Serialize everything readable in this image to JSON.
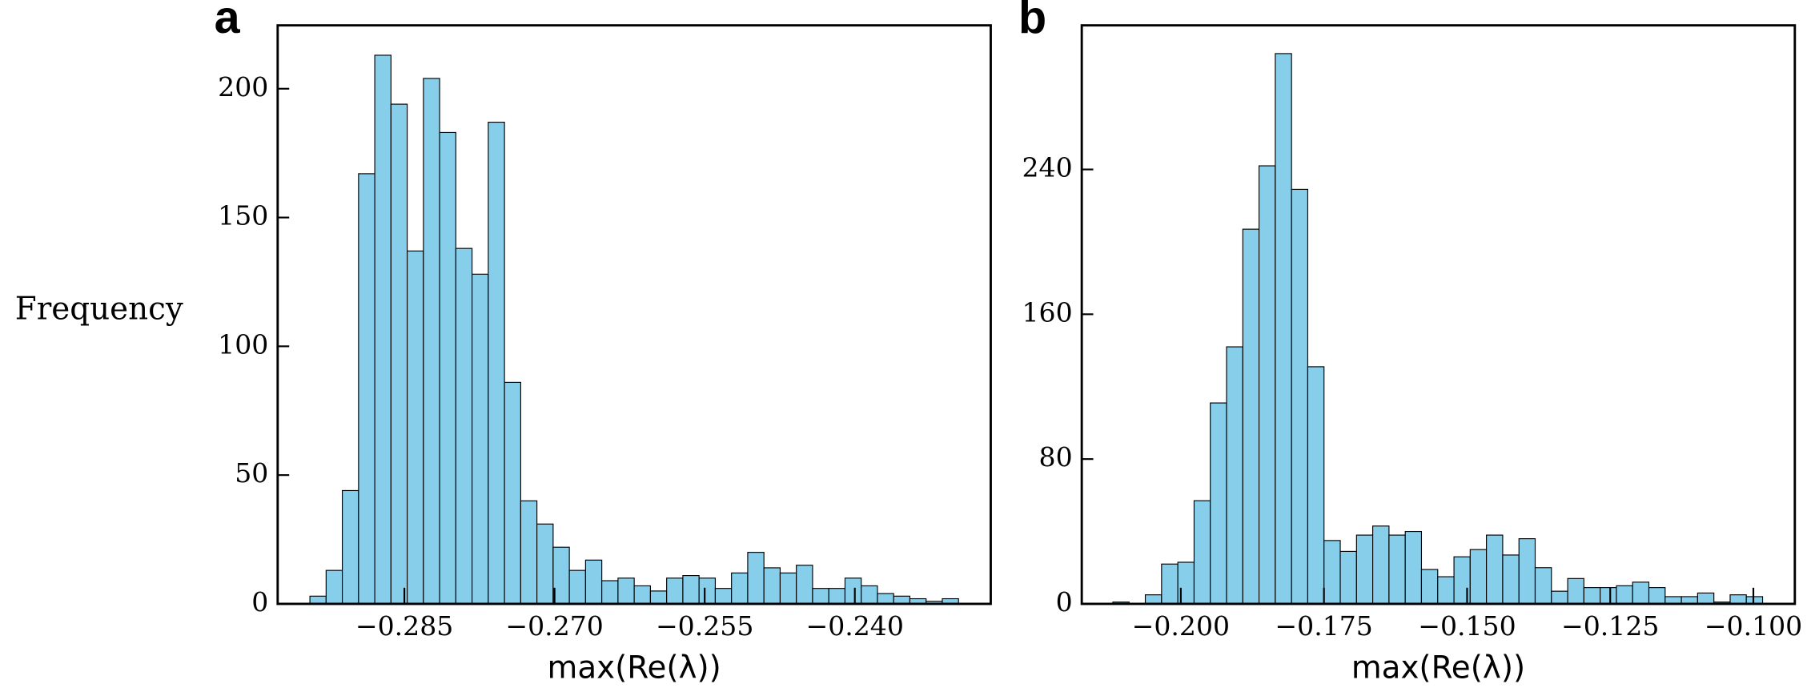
{
  "chart_data": [
    {
      "type": "histogram",
      "panel_label": "a",
      "ylabel": "Frequency",
      "xlabel": "max(Re(λ))",
      "color": "#87ceeb",
      "bins": [
        -0.29444,
        -0.29282,
        -0.2912,
        -0.28958,
        -0.28796,
        -0.28634,
        -0.28472,
        -0.2831,
        -0.28148,
        -0.27986,
        -0.27824,
        -0.27662,
        -0.275,
        -0.27338,
        -0.27176,
        -0.27014,
        -0.26852,
        -0.2669,
        -0.26528,
        -0.26366,
        -0.26204,
        -0.26042,
        -0.2588,
        -0.25718,
        -0.25556,
        -0.25394,
        -0.25232,
        -0.2507,
        -0.24908,
        -0.24746,
        -0.24584,
        -0.24422,
        -0.2426,
        -0.24098,
        -0.23936,
        -0.23774,
        -0.23612,
        -0.2345,
        -0.23288,
        -0.23126,
        -0.22964
      ],
      "values": [
        3,
        13,
        44,
        167,
        213,
        194,
        137,
        204,
        183,
        138,
        128,
        187,
        86,
        40,
        31,
        22,
        13,
        17,
        9,
        10,
        7,
        5,
        10,
        11,
        10,
        6,
        12,
        20,
        14,
        12,
        15,
        6,
        6,
        10,
        7,
        4,
        3,
        2,
        1,
        2
      ],
      "xlim": [
        -0.29766,
        -0.22642
      ],
      "ylim": [
        0,
        224.6
      ],
      "xticks": [
        {
          "value": -0.285,
          "label": "−0.285"
        },
        {
          "value": -0.27,
          "label": "−0.270"
        },
        {
          "value": -0.255,
          "label": "−0.255"
        },
        {
          "value": -0.24,
          "label": "−0.240"
        }
      ],
      "yticks": [
        0,
        50,
        100,
        150,
        200
      ]
    },
    {
      "type": "histogram",
      "panel_label": "b",
      "xlabel": "max(Re(λ))",
      "color": "#87ceeb",
      "bins": [
        -0.21187,
        -0.20903,
        -0.2062,
        -0.20336,
        -0.20052,
        -0.19768,
        -0.19485,
        -0.19201,
        -0.18917,
        -0.18634,
        -0.1835,
        -0.18066,
        -0.17783,
        -0.17499,
        -0.17215,
        -0.16931,
        -0.16648,
        -0.16364,
        -0.1608,
        -0.15797,
        -0.15513,
        -0.15229,
        -0.14946,
        -0.14662,
        -0.14378,
        -0.14094,
        -0.13811,
        -0.13527,
        -0.13243,
        -0.1296,
        -0.12676,
        -0.12392,
        -0.12109,
        -0.11825,
        -0.11541,
        -0.11257,
        -0.10974,
        -0.1069,
        -0.10406,
        -0.10123,
        -0.09839
      ],
      "values": [
        1,
        0,
        5,
        22,
        23,
        57,
        111,
        142,
        207,
        242,
        304,
        229,
        131,
        35,
        29,
        38,
        43,
        38,
        40,
        19,
        15,
        26,
        30,
        38,
        27,
        36,
        20,
        7,
        14,
        9,
        9,
        10,
        12,
        9,
        4,
        4,
        6,
        1,
        5,
        4
      ],
      "xlim": [
        -0.2173,
        -0.09276
      ],
      "ylim": [
        0,
        319.6
      ],
      "xticks": [
        {
          "value": -0.2,
          "label": "−0.200"
        },
        {
          "value": -0.175,
          "label": "−0.175"
        },
        {
          "value": -0.15,
          "label": "−0.150"
        },
        {
          "value": -0.125,
          "label": "−0.125"
        },
        {
          "value": -0.1,
          "label": "−0.100"
        }
      ],
      "yticks": [
        0,
        80,
        160,
        240
      ]
    }
  ]
}
